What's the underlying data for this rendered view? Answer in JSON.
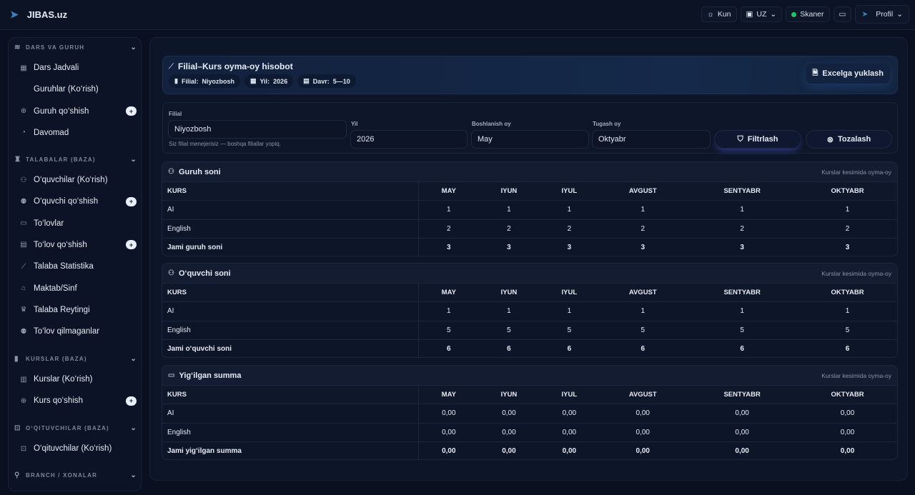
{
  "app": {
    "title": "JIBAS.uz"
  },
  "topbar": {
    "theme": "Kun",
    "lang": "UZ",
    "scanner": "Skaner",
    "profile": "Profil",
    "scanner_color": "#22c55e"
  },
  "sidebar": {
    "sections": [
      {
        "label": "DARS VA GURUH",
        "icon": "layers-icon",
        "items": [
          {
            "label": "Dars Jadvali",
            "icon": "calendar-icon"
          },
          {
            "label": "Guruhlar (Ko‘rish)",
            "icon": ""
          },
          {
            "label": "Guruh qo‘shish",
            "icon": "plus-circle-icon",
            "plus": true
          },
          {
            "label": "Davomad",
            "icon": "clock-icon"
          }
        ]
      },
      {
        "label": "TALABALAR (BAZA)",
        "icon": "student-icon",
        "items": [
          {
            "label": "O‘quvchilar (Ko‘rish)",
            "icon": "users-icon"
          },
          {
            "label": "O‘quvchi qo‘shish",
            "icon": "user-plus-icon",
            "plus": true
          },
          {
            "label": "To‘lovlar",
            "icon": "money-icon"
          },
          {
            "label": "To‘lov qo‘shish",
            "icon": "cash-register-icon",
            "plus": true
          },
          {
            "label": "Talaba Statistika",
            "icon": "chart-icon"
          },
          {
            "label": "Maktab/Sinf",
            "icon": "school-icon"
          },
          {
            "label": "Talaba Reytingi",
            "icon": "trophy-icon"
          },
          {
            "label": "To‘lov qilmaganlar",
            "icon": "user-x-icon"
          }
        ]
      },
      {
        "label": "KURSLAR (BAZA)",
        "icon": "book-icon",
        "items": [
          {
            "label": "Kurslar (Ko‘rish)",
            "icon": "book-open-icon"
          },
          {
            "label": "Kurs qo‘shish",
            "icon": "plus-circle-icon",
            "plus": true
          }
        ]
      },
      {
        "label": "O‘QITUVCHILAR (BAZA)",
        "icon": "teacher-icon",
        "items": [
          {
            "label": "O‘qituvchilar (Ko‘rish)",
            "icon": "teacher-icon"
          }
        ]
      },
      {
        "label": "BRANCH / XONALAR",
        "icon": "map-pin-icon",
        "items": []
      }
    ]
  },
  "header": {
    "title": "Filial–Kurs oyma-oy hisobot",
    "chips": [
      {
        "key": "Filial:",
        "value": "Niyozbosh"
      },
      {
        "key": "Yil:",
        "value": "2026"
      },
      {
        "key": "Davr:",
        "value": "5—10"
      }
    ],
    "excel": "Excelga yuklash"
  },
  "filter": {
    "filial_label": "Filial",
    "filial": "Niyozbosh",
    "hint": "Siz filial menejerisiz — boshqa filiallar yopiq.",
    "yil_label": "Yil",
    "yil": "2026",
    "start_label": "Boshlanish oy",
    "start": "May",
    "end_label": "Tugash oy",
    "end": "Oktyabr",
    "filter_btn": "Filtrlash",
    "clear_btn": "Tozalash"
  },
  "tables": [
    {
      "title": "Guruh soni",
      "icon": "users-icon",
      "subtitle": "Kurslar kesimida oyma-oy",
      "columns": [
        "KURS",
        "MAY",
        "IYUN",
        "IYUL",
        "AVGUST",
        "SENTYABR",
        "OKTYABR"
      ],
      "rows": [
        [
          "AI",
          "1",
          "1",
          "1",
          "1",
          "1",
          "1"
        ],
        [
          "English",
          "2",
          "2",
          "2",
          "2",
          "2",
          "2"
        ]
      ],
      "total": [
        "Jami guruh soni",
        "3",
        "3",
        "3",
        "3",
        "3",
        "3"
      ]
    },
    {
      "title": "O‘quvchi soni",
      "icon": "user-icon",
      "subtitle": "Kurslar kesimida oyma-oy",
      "columns": [
        "KURS",
        "MAY",
        "IYUN",
        "IYUL",
        "AVGUST",
        "SENTYABR",
        "OKTYABR"
      ],
      "rows": [
        [
          "AI",
          "1",
          "1",
          "1",
          "1",
          "1",
          "1"
        ],
        [
          "English",
          "5",
          "5",
          "5",
          "5",
          "5",
          "5"
        ]
      ],
      "total": [
        "Jami o‘quvchi soni",
        "6",
        "6",
        "6",
        "6",
        "6",
        "6"
      ]
    },
    {
      "title": "Yig‘ilgan summa",
      "icon": "money-icon",
      "subtitle": "Kurslar kesimida oyma-oy",
      "columns": [
        "KURS",
        "MAY",
        "IYUN",
        "IYUL",
        "AVGUST",
        "SENTYABR",
        "OKTYABR"
      ],
      "rows": [
        [
          "AI",
          "0,00",
          "0,00",
          "0,00",
          "0,00",
          "0,00",
          "0,00"
        ],
        [
          "English",
          "0,00",
          "0,00",
          "0,00",
          "0,00",
          "0,00",
          "0,00"
        ]
      ],
      "total": [
        "Jami yig‘ilgan summa",
        "0,00",
        "0,00",
        "0,00",
        "0,00",
        "0,00",
        "0,00"
      ]
    }
  ]
}
